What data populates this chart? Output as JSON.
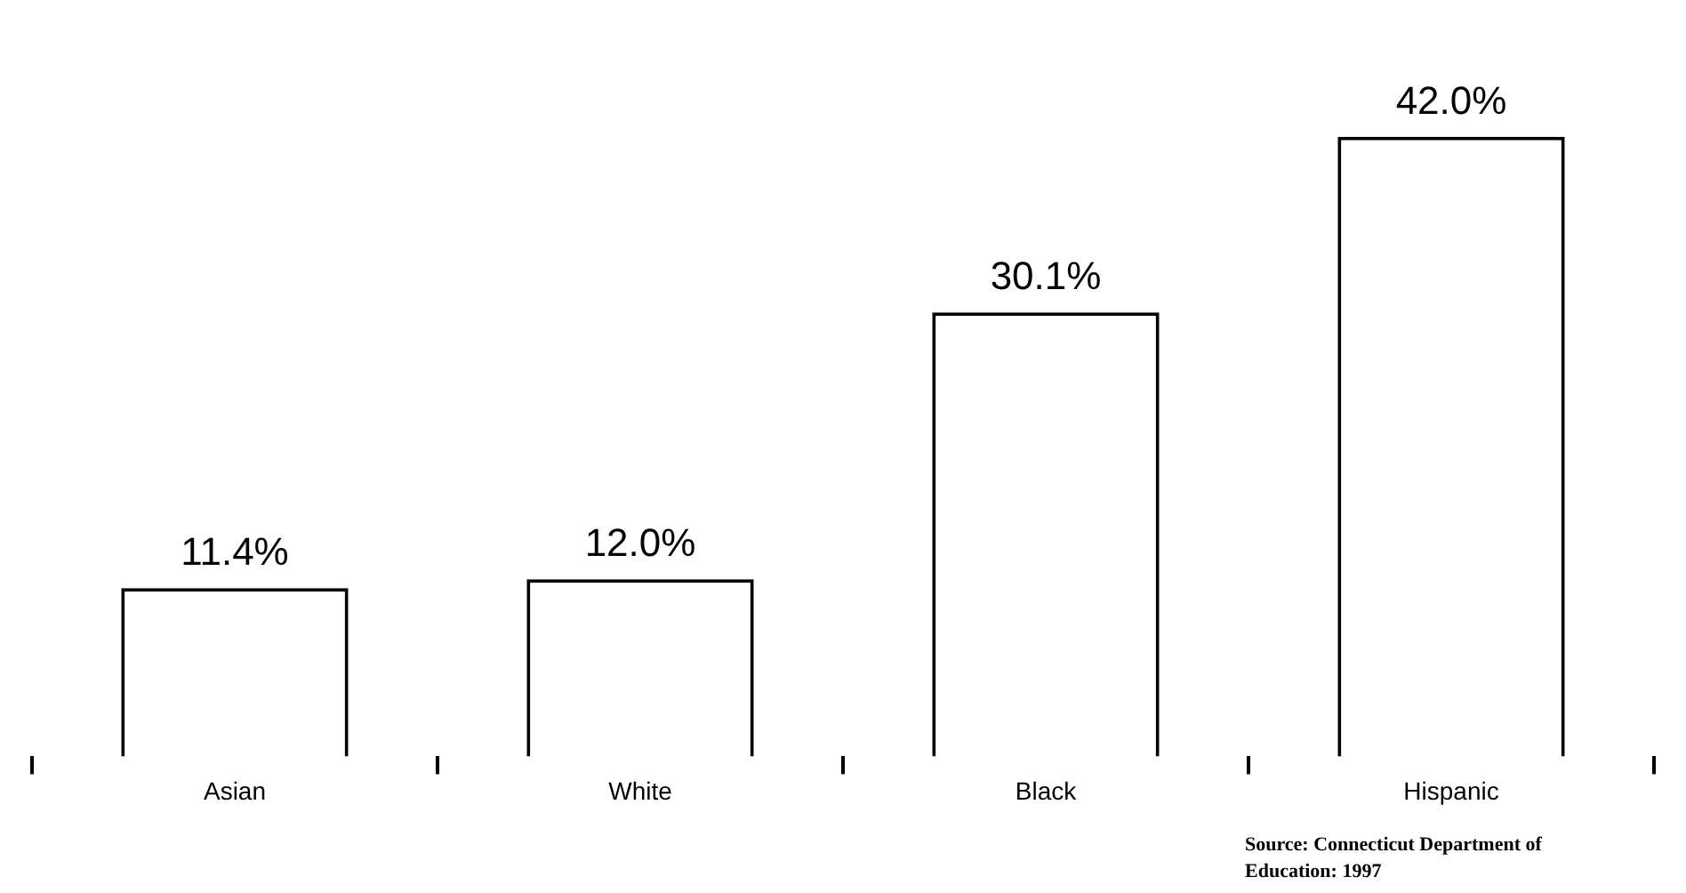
{
  "chart_data": {
    "type": "bar",
    "categories": [
      "Asian",
      "White",
      "Black",
      "Hispanic"
    ],
    "values": [
      11.4,
      12.0,
      30.1,
      42.0
    ],
    "value_labels": [
      "11.4%",
      "12.0%",
      "30.1%",
      "42.0%"
    ],
    "color": "#ffffff",
    "grid": false,
    "legend": false,
    "tick_labels": "x",
    "annotations": [
      "Source: Connecticut Department of Education: 1997"
    ]
  }
}
